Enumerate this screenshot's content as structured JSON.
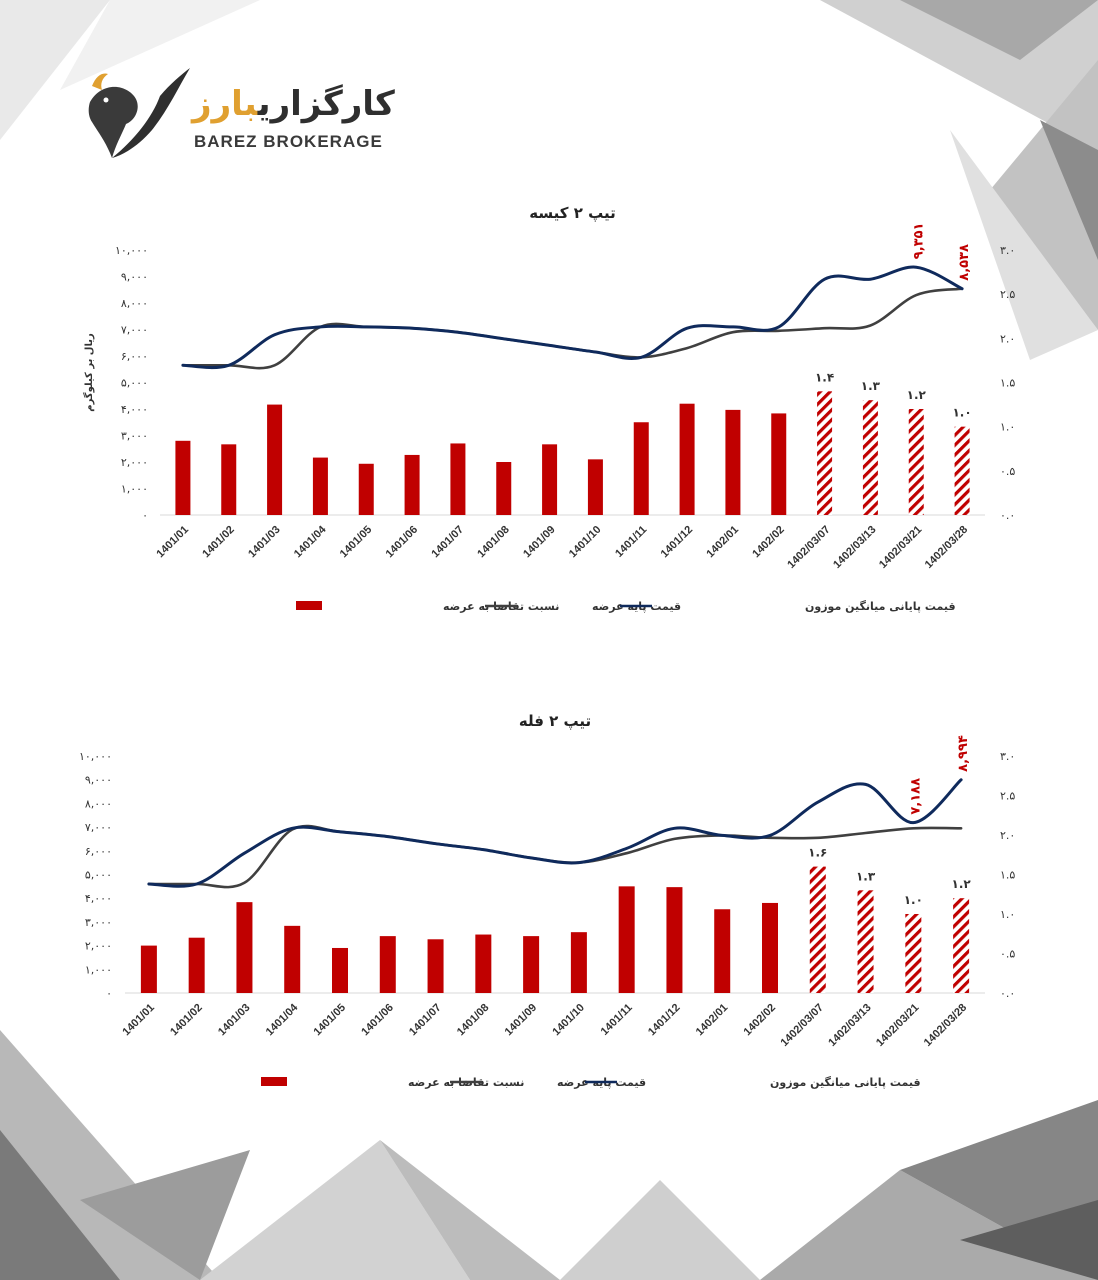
{
  "brand": {
    "name_fa_main": "کارگزاری",
    "name_fa_accent": "بارز",
    "name_en": "BAREZ BROKERAGE",
    "logo_icon": "eagle-logo-icon"
  },
  "colors": {
    "bar": "#c00000",
    "base_price_line": "#404040",
    "avg_price_line": "#0f2a5c",
    "accent": "#e0a030"
  },
  "chart_data": [
    {
      "type": "bar",
      "title": "تیپ ۲ کیسه",
      "ylabel": "ریال بر کیلوگرم",
      "ylim": [
        0,
        10000
      ],
      "y_ticks": [
        "۰",
        "۱,۰۰۰",
        "۲,۰۰۰",
        "۳,۰۰۰",
        "۴,۰۰۰",
        "۵,۰۰۰",
        "۶,۰۰۰",
        "۷,۰۰۰",
        "۸,۰۰۰",
        "۹,۰۰۰",
        "۱۰,۰۰۰"
      ],
      "y2lim": [
        0,
        3.0
      ],
      "y2_ticks": [
        "۰.۰",
        "۰.۵",
        "۱.۰",
        "۱.۵",
        "۲.۰",
        "۲.۵",
        "۳.۰"
      ],
      "categories": [
        "1401/01",
        "1401/02",
        "1401/03",
        "1401/04",
        "1401/05",
        "1401/06",
        "1401/07",
        "1401/08",
        "1401/09",
        "1401/10",
        "1401/11",
        "1401/12",
        "1402/01",
        "1402/02",
        "1402/03/07",
        "1402/03/13",
        "1402/03/21",
        "1402/03/28"
      ],
      "series": [
        {
          "name": "نسبت تقاضا به عرضه",
          "axis": "right",
          "kind": "bar",
          "values": [
            0.84,
            0.8,
            1.25,
            0.65,
            0.58,
            0.68,
            0.81,
            0.6,
            0.8,
            0.63,
            1.05,
            1.26,
            1.19,
            1.15,
            1.4,
            1.3,
            1.2,
            1.0
          ]
        },
        {
          "name": "قیمت پایه عرضه",
          "axis": "left",
          "kind": "line",
          "values": [
            5650,
            5650,
            5650,
            7100,
            7100,
            7050,
            6900,
            6650,
            6400,
            6150,
            5950,
            6300,
            6900,
            6950,
            7050,
            7150,
            8300,
            8538
          ]
        },
        {
          "name": "قیمت پایانی میانگین موزون",
          "axis": "left",
          "kind": "line",
          "values": [
            5650,
            5650,
            6800,
            7100,
            7100,
            7050,
            6900,
            6650,
            6400,
            6150,
            5950,
            7050,
            7100,
            7100,
            8900,
            8900,
            9351,
            8538
          ]
        }
      ],
      "hatched_from_index": 14,
      "bar_labels": [
        "",
        "",
        "",
        "",
        "",
        "",
        "",
        "",
        "",
        "",
        "",
        "",
        "",
        "",
        "۱.۴",
        "۱.۳",
        "۱.۲",
        "۱.۰"
      ],
      "line_labels": [
        {
          "index": 16,
          "text": "۹,۳۵۱"
        },
        {
          "index": 17,
          "text": "۸,۵۳۸"
        }
      ],
      "legend": [
        "نسبت تقاضا به عرضه",
        "قیمت پایه عرضه",
        "قیمت پایانی میانگین موزون"
      ]
    },
    {
      "type": "bar",
      "title": "تیپ ۲ فله",
      "ylabel": "",
      "ylim": [
        0,
        10000
      ],
      "y_ticks": [
        "۰",
        "۱,۰۰۰",
        "۲,۰۰۰",
        "۳,۰۰۰",
        "۴,۰۰۰",
        "۵,۰۰۰",
        "۶,۰۰۰",
        "۷,۰۰۰",
        "۸,۰۰۰",
        "۹,۰۰۰",
        "۱۰,۰۰۰"
      ],
      "y2lim": [
        0,
        3.0
      ],
      "y2_ticks": [
        "۰.۰",
        "۰.۵",
        "۱.۰",
        "۱.۵",
        "۲.۰",
        "۲.۵",
        "۳.۰"
      ],
      "categories": [
        "1401/01",
        "1401/02",
        "1401/03",
        "1401/04",
        "1401/05",
        "1401/06",
        "1401/07",
        "1401/08",
        "1401/09",
        "1401/10",
        "1401/11",
        "1401/12",
        "1402/01",
        "1402/02",
        "1402/03/07",
        "1402/03/13",
        "1402/03/21",
        "1402/03/28"
      ],
      "series": [
        {
          "name": "نسبت تقاضا به عرضه",
          "axis": "right",
          "kind": "bar",
          "values": [
            0.6,
            0.7,
            1.15,
            0.85,
            0.57,
            0.72,
            0.68,
            0.74,
            0.72,
            0.77,
            1.35,
            1.34,
            1.06,
            1.14,
            1.6,
            1.3,
            1.0,
            1.2
          ]
        },
        {
          "name": "قیمت پایه عرضه",
          "axis": "left",
          "kind": "line",
          "values": [
            4600,
            4600,
            4650,
            6900,
            6800,
            6600,
            6300,
            6050,
            5700,
            5500,
            5900,
            6500,
            6650,
            6550,
            6550,
            6750,
            6950,
            6950
          ]
        },
        {
          "name": "قیمت پایانی میانگین موزون",
          "axis": "left",
          "kind": "line",
          "values": [
            4600,
            4600,
            5900,
            6950,
            6800,
            6600,
            6300,
            6050,
            5700,
            5500,
            6100,
            6950,
            6650,
            6650,
            8050,
            8800,
            7188,
            8994
          ]
        }
      ],
      "hatched_from_index": 14,
      "bar_labels": [
        "",
        "",
        "",
        "",
        "",
        "",
        "",
        "",
        "",
        "",
        "",
        "",
        "",
        "",
        "۱.۶",
        "۱.۳",
        "۱.۰",
        "۱.۲"
      ],
      "line_labels": [
        {
          "index": 16,
          "text": "۷,۱۸۸"
        },
        {
          "index": 17,
          "text": "۸,۹۹۴"
        }
      ],
      "legend": [
        "نسبت تقاضا به عرضه",
        "قیمت پایه عرضه",
        "قیمت پایانی میانگین موزون"
      ]
    }
  ]
}
